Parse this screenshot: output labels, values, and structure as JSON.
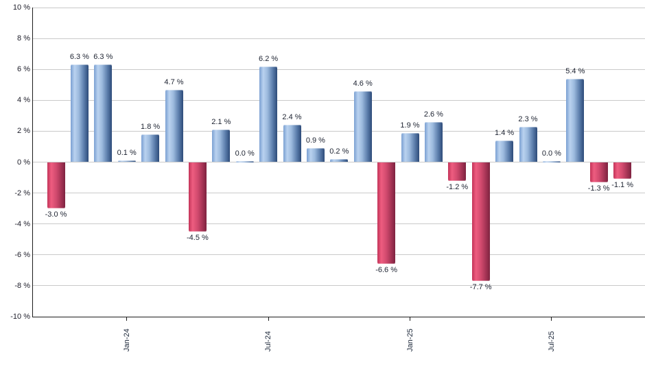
{
  "chart_data": {
    "type": "bar",
    "title": "",
    "xlabel": "",
    "ylabel": "",
    "ylim": [
      -10,
      10
    ],
    "grid": true,
    "legend": "none",
    "y_ticks": [
      10,
      8,
      6,
      4,
      2,
      0,
      -2,
      -4,
      -6,
      -8,
      -10
    ],
    "y_tick_labels": [
      "10 %",
      "8 %",
      "6 %",
      "4 %",
      "2 %",
      "0 %",
      "-2 %",
      "-4 %",
      "-6 %",
      "-8 %",
      "-10 %"
    ],
    "values": [
      -3.0,
      6.3,
      6.3,
      0.1,
      1.8,
      4.7,
      -4.5,
      2.1,
      0.0,
      6.2,
      2.4,
      0.9,
      0.2,
      4.6,
      -6.6,
      1.9,
      2.6,
      -1.2,
      -7.7,
      1.4,
      2.3,
      0.0,
      5.4,
      -1.3,
      -1.1
    ],
    "bar_labels": [
      "-3.0 %",
      "6.3 %",
      "6.3 %",
      "0.1 %",
      "1.8 %",
      "4.7 %",
      "-4.5 %",
      "2.1 %",
      "0.0 %",
      "6.2 %",
      "2.4 %",
      "0.9 %",
      "0.2 %",
      "4.6 %",
      "-6.6 %",
      "1.9 %",
      "2.6 %",
      "-1.2 %",
      "-7.7 %",
      "1.4 %",
      "2.3 %",
      "0.0 %",
      "5.4 %",
      "-1.3 %",
      "-1.1 %"
    ],
    "x_ticks": [
      {
        "index": 3,
        "label": "Jan-24"
      },
      {
        "index": 9,
        "label": "Jul-24"
      },
      {
        "index": 15,
        "label": "Jan-25"
      },
      {
        "index": 21,
        "label": "Jul-25"
      }
    ],
    "colors": {
      "positive_bar": "#6f94c6",
      "positive_highlight": "#bad2ef",
      "positive_edge": "#2d4b79",
      "negative_bar": "#d14a6e",
      "negative_highlight": "#ee5d80",
      "negative_edge": "#7e2340",
      "gridline": "#c9c9c9",
      "axis": "#1a1a1a",
      "text": "#1c2230"
    }
  }
}
